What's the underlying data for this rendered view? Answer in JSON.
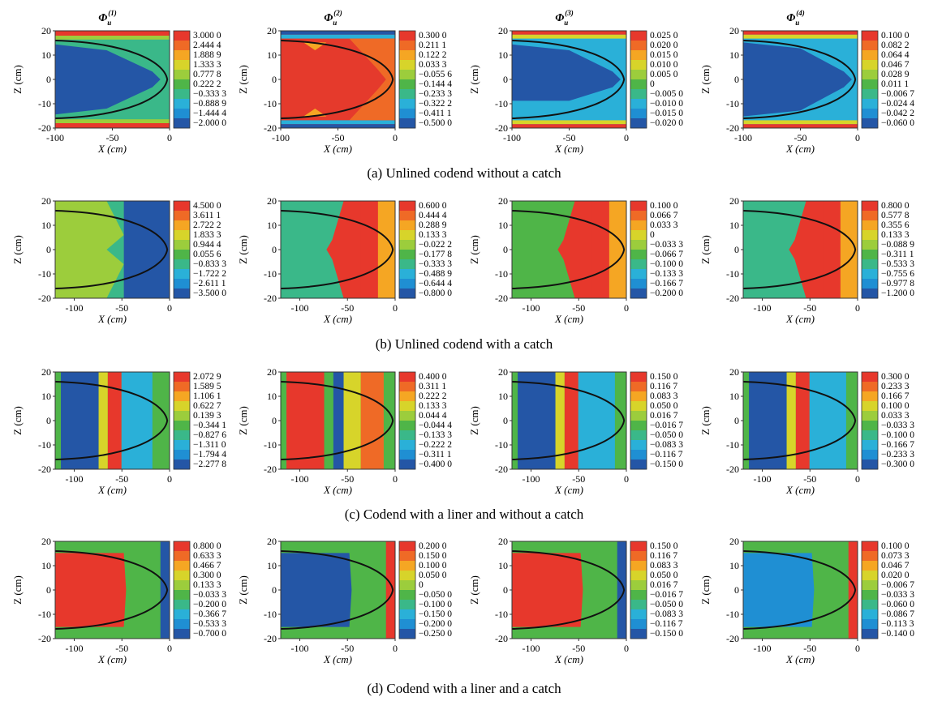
{
  "figure": {
    "captions": [
      "(a) Unlined codend without a catch",
      "(b) Unlined codend with a catch",
      "(c) Codend with a liner and without a catch",
      "(d) Codend with a liner and a catch"
    ],
    "column_titles": [
      "Φu(1)",
      "Φu(2)",
      "Φu(3)",
      "Φu(4)"
    ],
    "column_title_parts": [
      {
        "base": "Φ",
        "sub": "u",
        "sup": "(1)"
      },
      {
        "base": "Φ",
        "sub": "u",
        "sup": "(2)"
      },
      {
        "base": "Φ",
        "sub": "u",
        "sup": "(3)"
      },
      {
        "base": "Φ",
        "sub": "u",
        "sup": "(4)"
      }
    ],
    "xlabel": "X (cm)",
    "ylabel": "Z (cm)",
    "colors": {
      "levels": [
        "#c83a3a",
        "#e7382c",
        "#ef6a26",
        "#f5a623",
        "#d7d42a",
        "#9ccd3c",
        "#4fb548",
        "#3ab889",
        "#2ab0d8",
        "#1f8fd3",
        "#2456a6"
      ],
      "outline": "#111111"
    }
  },
  "chart_data": [
    {
      "type": "heatmap",
      "row": "a",
      "title": "Φu(1)",
      "xlabel": "X (cm)",
      "ylabel": "Z (cm)",
      "xlim": [
        -100,
        0
      ],
      "ylim": [
        -20,
        20
      ],
      "xticks": [
        "-100",
        "-50",
        "0"
      ],
      "yticks": [
        "20",
        "10",
        "0",
        "-10",
        "-20"
      ],
      "colorbar": [
        "3.000 0",
        "2.444 4",
        "1.888 9",
        "1.333 3",
        "0.777 8",
        "0.222 2",
        "−0.333 3",
        "−0.888 9",
        "−1.444 4",
        "−2.000 0"
      ],
      "pattern": "a1"
    },
    {
      "type": "heatmap",
      "row": "a",
      "title": "Φu(2)",
      "xlabel": "X (cm)",
      "ylabel": "Z (cm)",
      "xlim": [
        -100,
        0
      ],
      "ylim": [
        -20,
        20
      ],
      "xticks": [
        "-100",
        "-50",
        "0"
      ],
      "yticks": [
        "20",
        "10",
        "0",
        "-10",
        "-20"
      ],
      "colorbar": [
        "0.300 0",
        "0.211 1",
        "0.122 2",
        "0.033 3",
        "−0.055 6",
        "−0.144 4",
        "−0.233 3",
        "−0.322 2",
        "−0.411 1",
        "−0.500 0"
      ],
      "pattern": "a2"
    },
    {
      "type": "heatmap",
      "row": "a",
      "title": "Φu(3)",
      "xlabel": "X (cm)",
      "ylabel": "Z (cm)",
      "xlim": [
        -100,
        0
      ],
      "ylim": [
        -20,
        20
      ],
      "xticks": [
        "-100",
        "-50",
        "0"
      ],
      "yticks": [
        "20",
        "10",
        "0",
        "-10",
        "-20"
      ],
      "colorbar": [
        "0.025 0",
        "0.020 0",
        "0.015 0",
        "0.010 0",
        "0.005 0",
        "0",
        "−0.005 0",
        "−0.010 0",
        "−0.015 0",
        "−0.020 0"
      ],
      "pattern": "a3"
    },
    {
      "type": "heatmap",
      "row": "a",
      "title": "Φu(4)",
      "xlabel": "X (cm)",
      "ylabel": "Z (cm)",
      "xlim": [
        -100,
        0
      ],
      "ylim": [
        -20,
        20
      ],
      "xticks": [
        "-100",
        "-50",
        "0"
      ],
      "yticks": [
        "20",
        "10",
        "0",
        "-10",
        "-20"
      ],
      "colorbar": [
        "0.100 0",
        "0.082 2",
        "0.064 4",
        "0.046 7",
        "0.028 9",
        "0.011 1",
        "−0.006 7",
        "−0.024 4",
        "−0.042 2",
        "−0.060 0"
      ],
      "pattern": "a4"
    },
    {
      "type": "heatmap",
      "row": "b",
      "title": "",
      "xlabel": "X (cm)",
      "ylabel": "Z (cm)",
      "xlim": [
        -120,
        0
      ],
      "ylim": [
        -20,
        20
      ],
      "xticks": [
        "-100",
        "-50",
        "0"
      ],
      "yticks": [
        "20",
        "10",
        "0",
        "-10",
        "-20"
      ],
      "colorbar": [
        "4.500 0",
        "3.611 1",
        "2.722 2",
        "1.833 3",
        "0.944 4",
        "0.055 6",
        "−0.833 3",
        "−1.722 2",
        "−2.611 1",
        "−3.500 0"
      ],
      "pattern": "b1"
    },
    {
      "type": "heatmap",
      "row": "b",
      "title": "",
      "xlabel": "X (cm)",
      "ylabel": "Z (cm)",
      "xlim": [
        -120,
        0
      ],
      "ylim": [
        -20,
        20
      ],
      "xticks": [
        "-100",
        "-50",
        "0"
      ],
      "yticks": [
        "20",
        "10",
        "0",
        "-10",
        "-20"
      ],
      "colorbar": [
        "0.600 0",
        "0.444 4",
        "0.288 9",
        "0.133 3",
        "−0.022 2",
        "−0.177 8",
        "−0.333 3",
        "−0.488 9",
        "−0.644 4",
        "−0.800 0"
      ],
      "pattern": "b2"
    },
    {
      "type": "heatmap",
      "row": "b",
      "title": "",
      "xlabel": "X (cm)",
      "ylabel": "Z (cm)",
      "xlim": [
        -120,
        0
      ],
      "ylim": [
        -20,
        20
      ],
      "xticks": [
        "-100",
        "-50",
        "0"
      ],
      "yticks": [
        "20",
        "10",
        "0",
        "-10",
        "-20"
      ],
      "colorbar": [
        "0.100 0",
        "0.066 7",
        "0.033 3",
        "0",
        "−0.033 3",
        "−0.066 7",
        "−0.100 0",
        "−0.133 3",
        "−0.166 7",
        "−0.200 0"
      ],
      "pattern": "b3"
    },
    {
      "type": "heatmap",
      "row": "b",
      "title": "",
      "xlabel": "X (cm)",
      "ylabel": "Z (cm)",
      "xlim": [
        -120,
        0
      ],
      "ylim": [
        -20,
        20
      ],
      "xticks": [
        "-100",
        "-50",
        "0"
      ],
      "yticks": [
        "20",
        "10",
        "0",
        "-10",
        "-20"
      ],
      "colorbar": [
        "0.800 0",
        "0.577 8",
        "0.355 6",
        "0.133 3",
        "−0.088 9",
        "−0.311 1",
        "−0.533 3",
        "−0.755 6",
        "−0.977 8",
        "−1.200 0"
      ],
      "pattern": "b4"
    },
    {
      "type": "heatmap",
      "row": "c",
      "title": "",
      "xlabel": "X (cm)",
      "ylabel": "Z (cm)",
      "xlim": [
        -120,
        0
      ],
      "ylim": [
        -20,
        20
      ],
      "xticks": [
        "-100",
        "-50",
        "0"
      ],
      "yticks": [
        "20",
        "10",
        "0",
        "-10",
        "-20"
      ],
      "colorbar": [
        "2.072 9",
        "1.589 5",
        "1.106 1",
        "0.622 7",
        "0.139 3",
        "−0.344 1",
        "−0.827 6",
        "−1.311 0",
        "−1.794 4",
        "−2.277 8"
      ],
      "pattern": "c1"
    },
    {
      "type": "heatmap",
      "row": "c",
      "title": "",
      "xlabel": "X (cm)",
      "ylabel": "Z (cm)",
      "xlim": [
        -120,
        0
      ],
      "ylim": [
        -20,
        20
      ],
      "xticks": [
        "-100",
        "-50",
        "0"
      ],
      "yticks": [
        "20",
        "10",
        "0",
        "-10",
        "-20"
      ],
      "colorbar": [
        "0.400 0",
        "0.311 1",
        "0.222 2",
        "0.133 3",
        "0.044 4",
        "−0.044 4",
        "−0.133 3",
        "−0.222 2",
        "−0.311 1",
        "−0.400 0"
      ],
      "pattern": "c2"
    },
    {
      "type": "heatmap",
      "row": "c",
      "title": "",
      "xlabel": "X (cm)",
      "ylabel": "Z (cm)",
      "xlim": [
        -120,
        0
      ],
      "ylim": [
        -20,
        20
      ],
      "xticks": [
        "-100",
        "-50",
        "0"
      ],
      "yticks": [
        "20",
        "10",
        "0",
        "-10",
        "-20"
      ],
      "colorbar": [
        "0.150 0",
        "0.116 7",
        "0.083 3",
        "0.050 0",
        "0.016 7",
        "−0.016 7",
        "−0.050 0",
        "−0.083 3",
        "−0.116 7",
        "−0.150 0"
      ],
      "pattern": "c3"
    },
    {
      "type": "heatmap",
      "row": "c",
      "title": "",
      "xlabel": "X (cm)",
      "ylabel": "Z (cm)",
      "xlim": [
        -120,
        0
      ],
      "ylim": [
        -20,
        20
      ],
      "xticks": [
        "-100",
        "-50",
        "0"
      ],
      "yticks": [
        "20",
        "10",
        "0",
        "-10",
        "-20"
      ],
      "colorbar": [
        "0.300 0",
        "0.233 3",
        "0.166 7",
        "0.100 0",
        "0.033 3",
        "−0.033 3",
        "−0.100 0",
        "−0.166 7",
        "−0.233 3",
        "−0.300 0"
      ],
      "pattern": "c4"
    },
    {
      "type": "heatmap",
      "row": "d",
      "title": "",
      "xlabel": "X (cm)",
      "ylabel": "Z (cm)",
      "xlim": [
        -120,
        0
      ],
      "ylim": [
        -20,
        20
      ],
      "xticks": [
        "-100",
        "-50",
        "0"
      ],
      "yticks": [
        "20",
        "10",
        "0",
        "-10",
        "-20"
      ],
      "colorbar": [
        "0.800 0",
        "0.633 3",
        "0.466 7",
        "0.300 0",
        "0.133 3",
        "−0.033 3",
        "−0.200 0",
        "−0.366 7",
        "−0.533 3",
        "−0.700 0"
      ],
      "pattern": "d1"
    },
    {
      "type": "heatmap",
      "row": "d",
      "title": "",
      "xlabel": "X (cm)",
      "ylabel": "Z (cm)",
      "xlim": [
        -120,
        0
      ],
      "ylim": [
        -20,
        20
      ],
      "xticks": [
        "-100",
        "-50",
        "0"
      ],
      "yticks": [
        "20",
        "10",
        "0",
        "-10",
        "-20"
      ],
      "colorbar": [
        "0.200 0",
        "0.150 0",
        "0.100 0",
        "0.050 0",
        "0",
        "−0.050 0",
        "−0.100 0",
        "−0.150 0",
        "−0.200 0",
        "−0.250 0"
      ],
      "pattern": "d2"
    },
    {
      "type": "heatmap",
      "row": "d",
      "title": "",
      "xlabel": "X (cm)",
      "ylabel": "Z (cm)",
      "xlim": [
        -120,
        0
      ],
      "ylim": [
        -20,
        20
      ],
      "xticks": [
        "-100",
        "-50",
        "0"
      ],
      "yticks": [
        "20",
        "10",
        "0",
        "-10",
        "-20"
      ],
      "colorbar": [
        "0.150 0",
        "0.116 7",
        "0.083 3",
        "0.050 0",
        "0.016 7",
        "−0.016 7",
        "−0.050 0",
        "−0.083 3",
        "−0.116 7",
        "−0.150 0"
      ],
      "pattern": "d3"
    },
    {
      "type": "heatmap",
      "row": "d",
      "title": "",
      "xlabel": "X (cm)",
      "ylabel": "Z (cm)",
      "xlim": [
        -120,
        0
      ],
      "ylim": [
        -20,
        20
      ],
      "xticks": [
        "-100",
        "-50",
        "0"
      ],
      "yticks": [
        "20",
        "10",
        "0",
        "-10",
        "-20"
      ],
      "colorbar": [
        "0.100 0",
        "0.073 3",
        "0.046 7",
        "0.020 0",
        "−0.006 7",
        "−0.033 3",
        "−0.060 0",
        "−0.086 7",
        "−0.113 3",
        "−0.140 0"
      ],
      "pattern": "d4"
    }
  ]
}
